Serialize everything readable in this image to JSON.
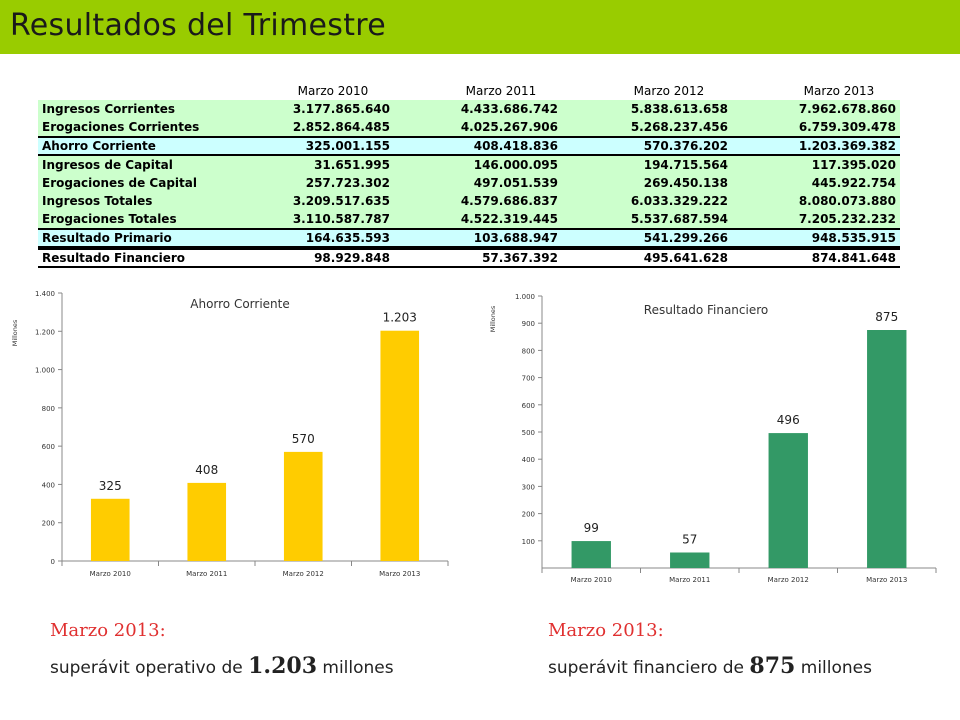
{
  "title": "Resultados del Trimestre",
  "table": {
    "columns": [
      "Marzo 2010",
      "Marzo 2011",
      "Marzo 2012",
      "Marzo 2013"
    ],
    "rows": [
      {
        "label": "Ingresos Corrientes",
        "values": [
          "3.177.865.640",
          "4.433.686.742",
          "5.838.613.658",
          "7.962.678.860"
        ],
        "style": "green"
      },
      {
        "label": "Erogaciones Corrientes",
        "values": [
          "2.852.864.485",
          "4.025.267.906",
          "5.268.237.456",
          "6.759.309.478"
        ],
        "style": "green"
      },
      {
        "label": "Ahorro Corriente",
        "values": [
          "325.001.155",
          "408.418.836",
          "570.376.202",
          "1.203.369.382"
        ],
        "style": "cyan-boxed"
      },
      {
        "label": "Ingresos de Capital",
        "values": [
          "31.651.995",
          "146.000.095",
          "194.715.564",
          "117.395.020"
        ],
        "style": "green"
      },
      {
        "label": "Erogaciones de Capital",
        "values": [
          "257.723.302",
          "497.051.539",
          "269.450.138",
          "445.922.754"
        ],
        "style": "green"
      },
      {
        "label": "Ingresos Totales",
        "values": [
          "3.209.517.635",
          "4.579.686.837",
          "6.033.329.222",
          "8.080.073.880"
        ],
        "style": "green"
      },
      {
        "label": "Erogaciones Totales",
        "values": [
          "3.110.587.787",
          "4.522.319.445",
          "5.537.687.594",
          "7.205.232.232"
        ],
        "style": "green"
      },
      {
        "label": "Resultado Primario",
        "values": [
          "164.635.593",
          "103.688.947",
          "541.299.266",
          "948.535.915"
        ],
        "style": "cyan-boxed"
      },
      {
        "label": "Resultado Financiero",
        "values": [
          "98.929.848",
          "57.367.392",
          "495.641.628",
          "874.841.648"
        ],
        "style": "white-boxed"
      }
    ]
  },
  "chart_data": [
    {
      "type": "bar",
      "title": "Ahorro Corriente",
      "ylabel": "Millones",
      "categories": [
        "Marzo 2010",
        "Marzo 2011",
        "Marzo 2012",
        "Marzo 2013"
      ],
      "values": [
        325,
        408,
        570,
        1203
      ],
      "data_labels": [
        "325",
        "408",
        "570",
        "1.203"
      ],
      "ylim": [
        0,
        1400
      ],
      "yticks": [
        0,
        200,
        400,
        600,
        800,
        1000,
        1200,
        1400
      ],
      "ytick_labels": [
        "0",
        "200",
        "400",
        "600",
        "800",
        "1.000",
        "1.200",
        "1.400"
      ],
      "color": "#ffcc00"
    },
    {
      "type": "bar",
      "title": "Resultado Financiero",
      "ylabel": "Millones",
      "categories": [
        "Marzo 2010",
        "Marzo 2011",
        "Marzo 2012",
        "Marzo 2013"
      ],
      "values": [
        99,
        57,
        496,
        875
      ],
      "data_labels": [
        "99",
        "57",
        "496",
        "875"
      ],
      "ylim": [
        0,
        1000
      ],
      "yticks": [
        100,
        200,
        300,
        400,
        500,
        600,
        700,
        800,
        900,
        1000
      ],
      "ytick_labels": [
        "100",
        "200",
        "300",
        "400",
        "500",
        "600",
        "700",
        "800",
        "900",
        "1.000"
      ],
      "color": "#339966"
    }
  ],
  "footer": {
    "left": {
      "heading": "Marzo 2013:",
      "text_before": "superávit operativo de ",
      "value": "1.203",
      "text_after": " millones"
    },
    "right": {
      "heading": "Marzo 2013:",
      "text_before": "superávit  financiero de ",
      "value": "875",
      "text_after": " millones"
    }
  }
}
